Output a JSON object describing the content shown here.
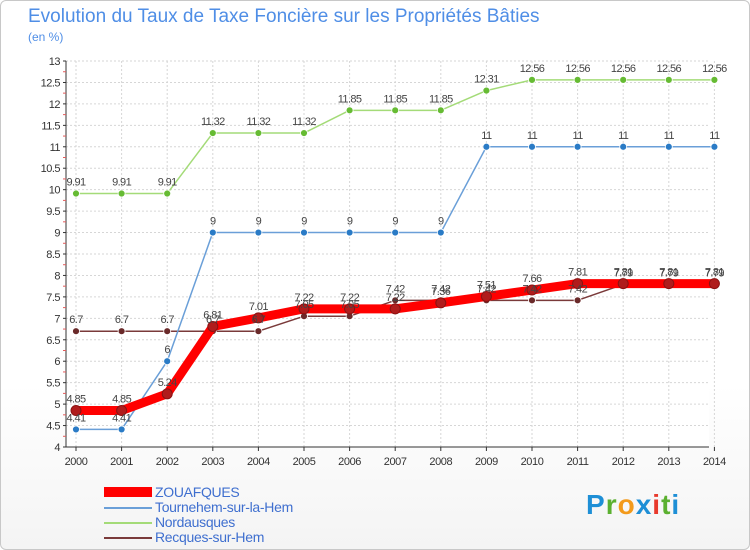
{
  "chart_data": {
    "type": "line",
    "title": "Evolution du Taux de Taxe Foncière sur les Propriétés Bâties",
    "subtitle": "(en %)",
    "xlabel": "",
    "ylabel": "",
    "x": [
      2000,
      2001,
      2002,
      2003,
      2004,
      2005,
      2006,
      2007,
      2008,
      2009,
      2010,
      2011,
      2012,
      2013,
      2014
    ],
    "ylim": [
      4,
      13
    ],
    "yticks": [
      4,
      4.5,
      5,
      5.5,
      6,
      6.5,
      7,
      7.5,
      8,
      8.5,
      9,
      9.5,
      10,
      10.5,
      11,
      11.5,
      12,
      12.5,
      13
    ],
    "grid": true,
    "legend_position": "bottom-left",
    "series": [
      {
        "name": "ZOUAFQUES",
        "color": "#ff0000",
        "marker": "#b01c1c",
        "values": [
          4.85,
          4.85,
          5.24,
          6.81,
          7.01,
          7.22,
          7.22,
          7.22,
          7.36,
          7.51,
          7.66,
          7.81,
          7.81,
          7.81,
          7.81
        ],
        "labels": [
          "4.85",
          "4.85",
          "5.24",
          "6.81",
          "7.01",
          "7.22",
          "7.22",
          "7.22",
          "7.36",
          "7.51",
          "7.66",
          "7.81",
          "7.81",
          "7.81",
          "7.81"
        ]
      },
      {
        "name": "Tournehem-sur-la-Hem",
        "color": "#6a9fd8",
        "marker": "#2a7bc6",
        "values": [
          4.41,
          4.41,
          6,
          9,
          9,
          9,
          9,
          9,
          9,
          11,
          11,
          11,
          11,
          11,
          11
        ],
        "labels": [
          "4.41",
          "4.41",
          "6",
          "9",
          "9",
          "9",
          "9",
          "9",
          "9",
          "11",
          "11",
          "11",
          "11",
          "11",
          "11"
        ]
      },
      {
        "name": "Nordausques",
        "color": "#a4db78",
        "marker": "#66bb33",
        "values": [
          9.91,
          9.91,
          9.91,
          11.32,
          11.32,
          11.32,
          11.85,
          11.85,
          11.85,
          12.31,
          12.56,
          12.56,
          12.56,
          12.56,
          12.56
        ],
        "labels": [
          "9.91",
          "9.91",
          "9.91",
          "11.32",
          "11.32",
          "11.32",
          "11.85",
          "11.85",
          "11.85",
          "12.31",
          "12.56",
          "12.56",
          "12.56",
          "12.56",
          "12.56"
        ]
      },
      {
        "name": "Recques-sur-Hem",
        "color": "#7a3a3a",
        "marker": "#6a2a2a",
        "values": [
          6.7,
          6.7,
          6.7,
          6.7,
          6.7,
          7.05,
          7.05,
          7.42,
          7.42,
          7.42,
          7.42,
          7.42,
          7.79,
          7.79,
          7.79
        ],
        "labels": [
          "6.7",
          "6.7",
          "6.7",
          "6.7",
          "6.7",
          "7.05",
          "7.05",
          "7.42",
          "7.42",
          "7.42",
          "7.42",
          "7.42",
          "7.79",
          "7.79",
          "7.79"
        ]
      }
    ]
  },
  "logo": {
    "letters": [
      "P",
      "r",
      "o",
      "x",
      "i",
      "t",
      "i"
    ]
  }
}
